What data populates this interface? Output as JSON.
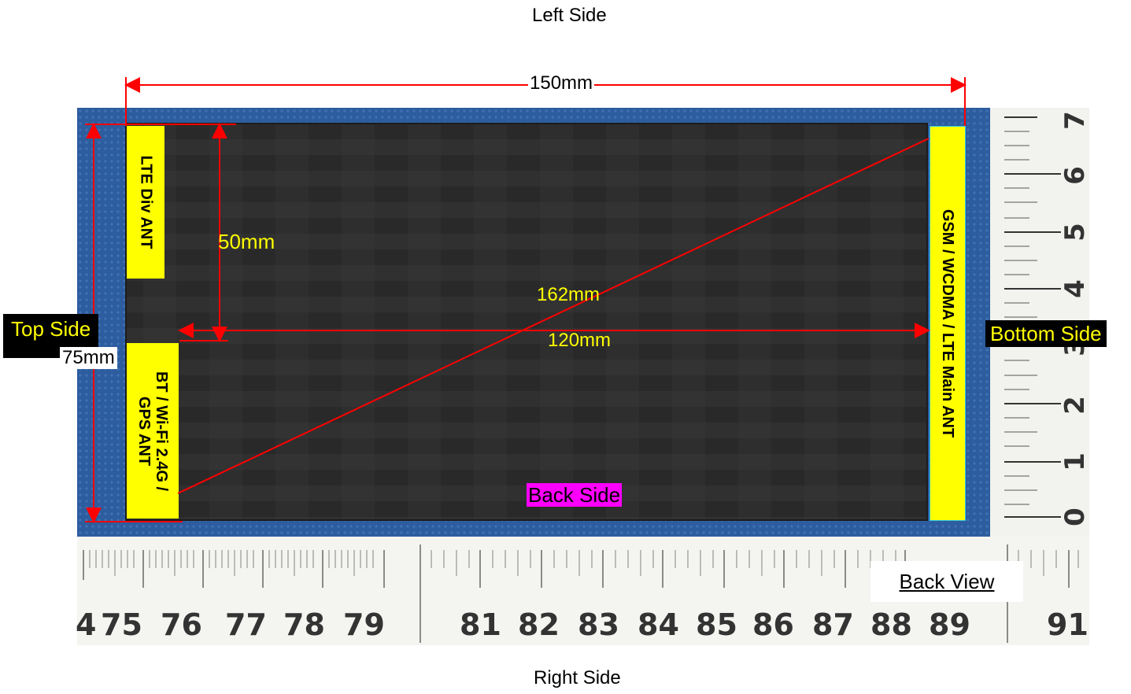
{
  "labels": {
    "left_side": "Left Side",
    "right_side": "Right Side",
    "top_side": "Top Side",
    "bottom_side": "Bottom Side",
    "back_side": "Back Side",
    "back_view": "Back View"
  },
  "dimensions": {
    "width": "150mm",
    "height": "75mm",
    "inner_height": "50mm",
    "diagonal": "162mm",
    "inner_width": "120mm"
  },
  "antennas": {
    "lte_div": "LTE Div ANT",
    "bt_wifi_gps": "BT / Wi-Fi 2.4G /\nGPS ANT",
    "main": "GSM / WCDMA / LTE Main ANT"
  },
  "ruler_bottom": [
    "4",
    "75",
    "76",
    "77",
    "78",
    "79",
    "81",
    "82",
    "83",
    "84",
    "85",
    "86",
    "87",
    "88",
    "89",
    "91"
  ],
  "ruler_right": [
    "7",
    "6",
    "5",
    "4",
    "3",
    "2",
    "1",
    "0"
  ],
  "colors": {
    "annotation_line": "#ff0000",
    "antenna_fill": "#ffff00",
    "background_mat": "#2a5aa0",
    "device": "#2b2b2b"
  }
}
